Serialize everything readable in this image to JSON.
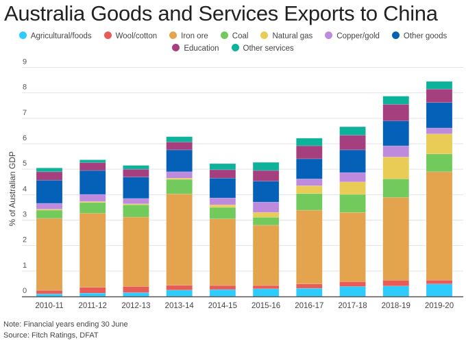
{
  "chart_data": {
    "type": "bar",
    "stacked": true,
    "title": "Australia Goods and Services Exports to China",
    "xlabel": "",
    "ylabel": "% of Australian GDP",
    "ylim": [
      0,
      9
    ],
    "yticks": [
      "0",
      "1",
      "2",
      "3",
      "4",
      "5",
      "6",
      "7",
      "8",
      "9"
    ],
    "grid": true,
    "legend_position": "top",
    "categories": [
      "2010-11",
      "2011-12",
      "2012-13",
      "2013-14",
      "2014-15",
      "2015-16",
      "2016-17",
      "2017-18",
      "2018-19",
      "2019-20"
    ],
    "series": [
      {
        "name": "Agricultural/foods",
        "color": "#2ecbff",
        "values": [
          0.1,
          0.13,
          0.15,
          0.25,
          0.27,
          0.3,
          0.32,
          0.39,
          0.41,
          0.49
        ]
      },
      {
        "name": "Wool/cotton",
        "color": "#e85c57",
        "values": [
          0.14,
          0.23,
          0.24,
          0.19,
          0.16,
          0.13,
          0.17,
          0.19,
          0.23,
          0.15
        ]
      },
      {
        "name": "Iron ore",
        "color": "#e4a44d",
        "values": [
          2.83,
          2.91,
          2.73,
          3.59,
          2.62,
          2.37,
          2.9,
          2.72,
          3.25,
          4.26
        ]
      },
      {
        "name": "Coal",
        "color": "#72c95c",
        "values": [
          0.32,
          0.42,
          0.48,
          0.57,
          0.45,
          0.31,
          0.65,
          0.71,
          0.73,
          0.7
        ]
      },
      {
        "name": "Natural gas",
        "color": "#e9cc56",
        "values": [
          0.04,
          0.04,
          0.04,
          0.05,
          0.1,
          0.19,
          0.31,
          0.49,
          0.86,
          0.79
        ]
      },
      {
        "name": "Copper/gold",
        "color": "#bd8ade",
        "values": [
          0.23,
          0.28,
          0.21,
          0.25,
          0.27,
          0.41,
          0.27,
          0.37,
          0.44,
          0.23
        ]
      },
      {
        "name": "Other goods",
        "color": "#0561b8",
        "values": [
          0.91,
          0.94,
          0.84,
          0.86,
          0.78,
          0.82,
          0.79,
          0.89,
          0.98,
          1.0
        ]
      },
      {
        "name": "Education",
        "color": "#a63f7e",
        "values": [
          0.33,
          0.31,
          0.31,
          0.31,
          0.33,
          0.42,
          0.51,
          0.58,
          0.65,
          0.53
        ]
      },
      {
        "name": "Other services",
        "color": "#0db29a",
        "values": [
          0.15,
          0.11,
          0.15,
          0.21,
          0.24,
          0.32,
          0.3,
          0.33,
          0.32,
          0.3
        ]
      }
    ]
  },
  "notes": {
    "note": "Note: Financial years ending 30 June",
    "source": "Source: Fitch Ratings, DFAT"
  }
}
